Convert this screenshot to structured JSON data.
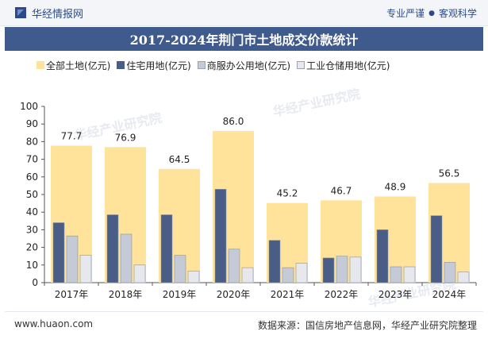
{
  "header": {
    "brand_name": "华经情报网",
    "tagline_left": "专业严谨",
    "tagline_right": "客观科学"
  },
  "title": "2017-2024年荆门市土地成交价款统计",
  "legend": [
    {
      "label": "全部土地(亿元)",
      "color": "#ffe39a"
    },
    {
      "label": "住宅用地(亿元)",
      "color": "#4a5d86"
    },
    {
      "label": "商服办公用地(亿元)",
      "color": "#c4cad6"
    },
    {
      "label": "工业仓储用地(亿元)",
      "color": "#e6e8ee"
    }
  ],
  "watermark": "华经产业研究院",
  "chart_data": {
    "type": "bar",
    "categories": [
      "2017年",
      "2018年",
      "2019年",
      "2020年",
      "2021年",
      "2022年",
      "2023年",
      "2024年"
    ],
    "series": [
      {
        "name": "全部土地(亿元)",
        "values": [
          77.7,
          76.9,
          64.5,
          86.0,
          45.2,
          46.7,
          48.9,
          56.5
        ],
        "color": "#ffe39a"
      },
      {
        "name": "住宅用地(亿元)",
        "values": [
          34,
          38.5,
          38.5,
          53,
          24,
          14,
          30,
          38
        ],
        "color": "#4a5d86"
      },
      {
        "name": "商服办公用地(亿元)",
        "values": [
          26.5,
          27.5,
          15.5,
          19,
          8.5,
          15,
          9,
          11.5
        ],
        "color": "#c4cad6"
      },
      {
        "name": "工业仓储用地(亿元)",
        "values": [
          15.5,
          10,
          6.5,
          8.5,
          11,
          14.5,
          9,
          6
        ],
        "color": "#e6e8ee"
      }
    ],
    "total_labels": [
      "77.7",
      "76.9",
      "64.5",
      "86.0",
      "45.2",
      "46.7",
      "48.9",
      "56.5"
    ],
    "y_ticks": [
      "0",
      "10",
      "20",
      "30",
      "40",
      "50",
      "60",
      "70",
      "80",
      "90",
      "100"
    ],
    "ylim": [
      0,
      100
    ]
  },
  "footer": {
    "left": "www.huaon.com",
    "right": "数据来源：国信房地产信息网，华经产业研究院整理"
  }
}
